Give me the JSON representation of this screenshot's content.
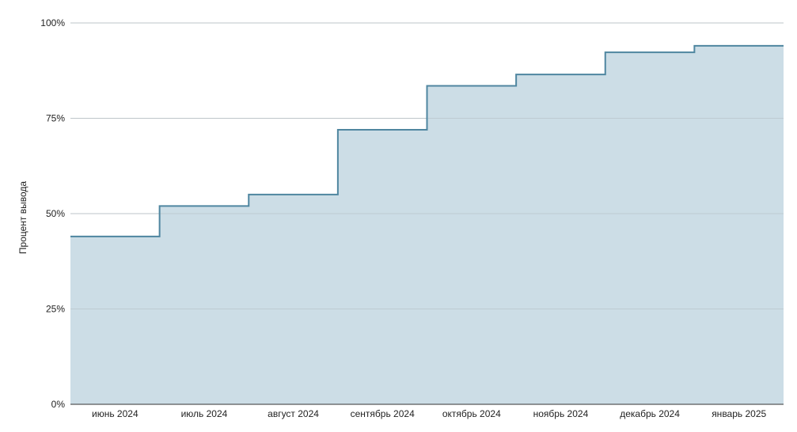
{
  "chart_data": {
    "type": "area",
    "step": true,
    "title": "",
    "xlabel": "",
    "ylabel": "Процент вывода",
    "categories": [
      "июнь 2024",
      "июль 2024",
      "август 2024",
      "сентябрь 2024",
      "октябрь 2024",
      "ноябрь 2024",
      "декабрь 2024",
      "январь 2025"
    ],
    "series": [
      {
        "values": [
          44,
          52,
          55,
          72,
          83.5,
          86.5,
          92.3,
          94
        ]
      }
    ],
    "ylim": [
      0,
      100
    ],
    "y_ticks": [
      0,
      25,
      50,
      75,
      100
    ],
    "y_tick_labels": [
      "0%",
      "25%",
      "50%",
      "75%",
      "100%"
    ],
    "grid": true,
    "legend": "none",
    "colors": {
      "line": "#4f86a0",
      "fill": "#ccdde6",
      "grid": "#cccccc",
      "axis": "#333333"
    }
  }
}
